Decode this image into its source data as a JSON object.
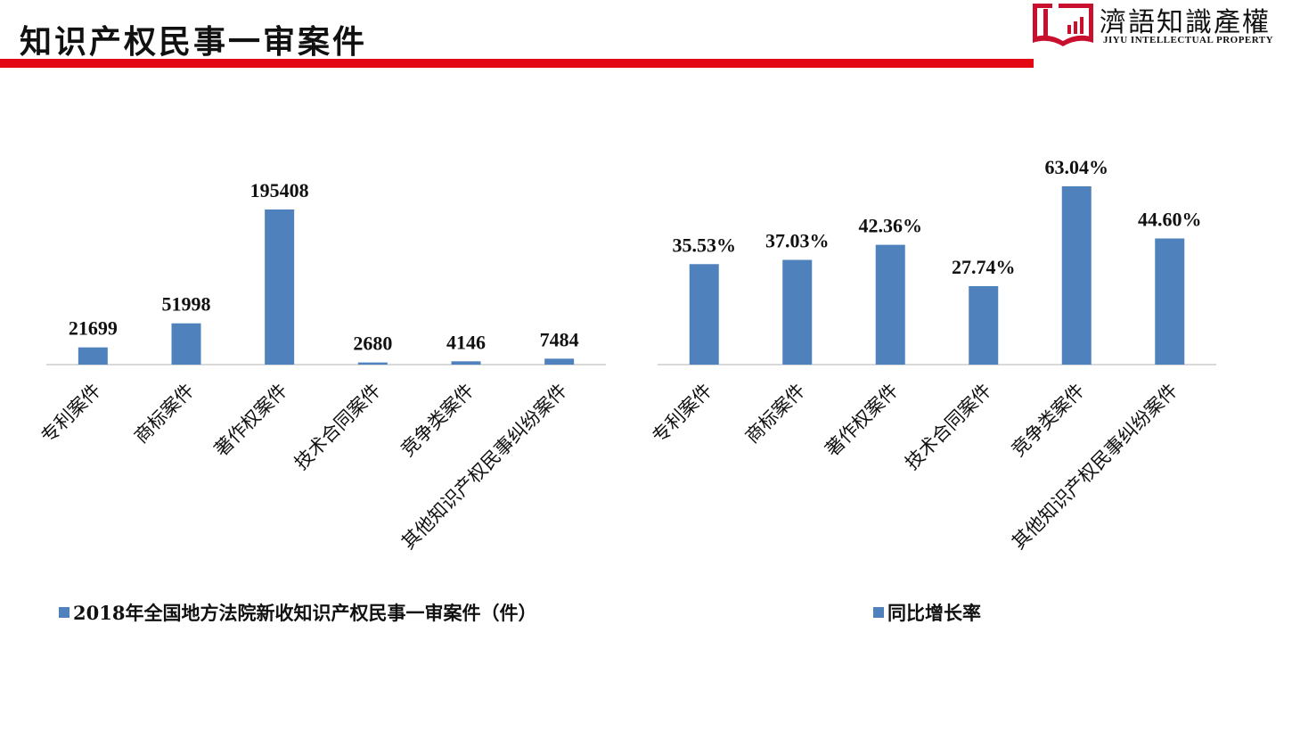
{
  "header": {
    "title": "知识产权民事一审案件",
    "logo": {
      "cn": "濟語知識產權",
      "en": "JIYU INTELLECTUAL PROPERTY"
    }
  },
  "colors": {
    "bar": "#4f81bd",
    "accent": "#e30613",
    "axis": "#d9d9d9"
  },
  "chart_data": [
    {
      "type": "bar",
      "categories": [
        "专利案件",
        "商标案件",
        "著作权案件",
        "技术合同案件",
        "竞争类案件",
        "其他知识产权民事纠纷案件"
      ],
      "series": [
        {
          "name": "2018年全国地方法院新收知识产权民事一审案件（件）",
          "values": [
            21699,
            51998,
            195408,
            2680,
            4146,
            7484
          ]
        }
      ],
      "data_labels": [
        "21699",
        "51998",
        "195408",
        "2680",
        "4146",
        "7484"
      ],
      "ylim": [
        0,
        195408
      ],
      "legend": "bottom",
      "grid": false
    },
    {
      "type": "bar",
      "categories": [
        "专利案件",
        "商标案件",
        "著作权案件",
        "技术合同案件",
        "竞争类案件",
        "其他知识产权民事纠纷案件"
      ],
      "series": [
        {
          "name": "同比增长率",
          "values": [
            35.53,
            37.03,
            42.36,
            27.74,
            63.04,
            44.6
          ]
        }
      ],
      "data_labels": [
        "35.53%",
        "37.03%",
        "42.36%",
        "27.74%",
        "63.04%",
        "44.60%"
      ],
      "ylim": [
        0,
        63.04
      ],
      "legend": "bottom",
      "grid": false
    }
  ]
}
